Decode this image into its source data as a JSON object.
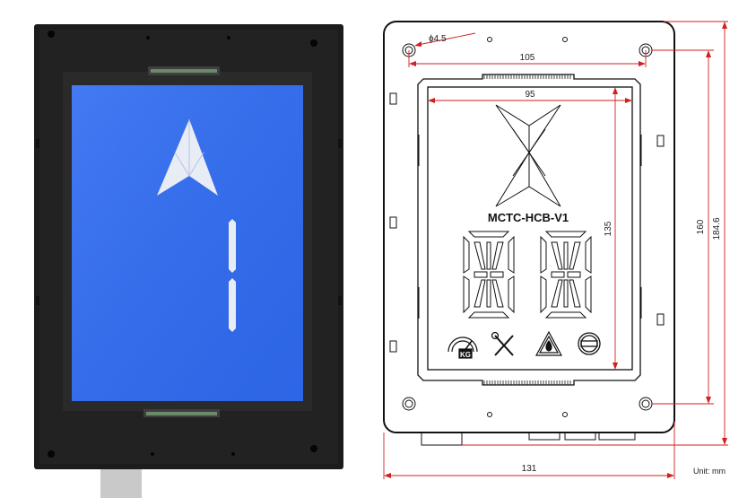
{
  "model_label": "MCTC-HCB-V1",
  "unit_label": "Unit: mm",
  "dimensions": {
    "hole_diameter": "ϕ4.5",
    "hole_spacing": "105",
    "display_width": "95",
    "display_height": "135",
    "hole_vertical": "160",
    "overall_height": "184.6",
    "overall_width": "131"
  },
  "photo": {
    "screen_color": "#2f6bf2",
    "bezel_color": "#1c1c1c",
    "floor_digit": "1",
    "direction": "up"
  },
  "colors": {
    "dimension_line": "#d21f1f",
    "outline": "#111111"
  },
  "indicator_icons": [
    "overload-kg-icon",
    "maintenance-tools-icon",
    "fire-warning-icon",
    "no-entry-icon"
  ]
}
